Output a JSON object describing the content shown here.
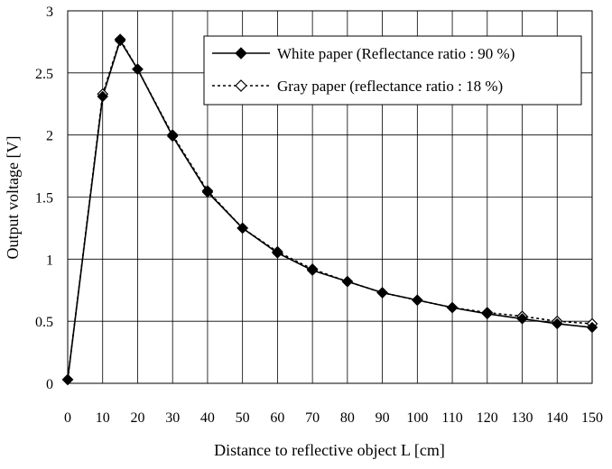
{
  "chart_data": {
    "type": "line",
    "title": "",
    "xlabel": "Distance to reflective object L [cm]",
    "ylabel": "Output voltage [V]",
    "xlim": [
      0,
      150
    ],
    "ylim": [
      0,
      3
    ],
    "xticks": [
      0,
      10,
      20,
      30,
      40,
      50,
      60,
      70,
      80,
      90,
      100,
      110,
      120,
      130,
      140,
      150
    ],
    "yticks": [
      0,
      0.5,
      1,
      1.5,
      2,
      2.5,
      3
    ],
    "xtick_labels": [
      "0",
      "10",
      "20",
      "30",
      "40",
      "50",
      "60",
      "70",
      "80",
      "90",
      "100",
      "110",
      "120",
      "130",
      "140",
      "150"
    ],
    "ytick_labels": [
      "0",
      "0.5",
      "1",
      "1.5",
      "2",
      "2.5",
      "3"
    ],
    "grid": true,
    "legend_position": "top-right",
    "series": [
      {
        "name": "White paper (Reflectance ratio : 90 %)",
        "style": "solid",
        "marker": "filled-diamond",
        "x": [
          0,
          10,
          15,
          20,
          30,
          40,
          50,
          60,
          70,
          80,
          90,
          100,
          110,
          120,
          130,
          140,
          150
        ],
        "y": [
          0.03,
          2.31,
          2.76,
          2.53,
          1.99,
          1.54,
          1.25,
          1.05,
          0.91,
          0.82,
          0.73,
          0.67,
          0.61,
          0.56,
          0.52,
          0.48,
          0.45
        ]
      },
      {
        "name": "Gray paper (reflectance ratio : 18 %)",
        "style": "dotted",
        "marker": "hollow-diamond",
        "x": [
          0,
          10,
          15,
          20,
          30,
          40,
          50,
          60,
          70,
          80,
          90,
          100,
          110,
          120,
          130,
          140,
          150
        ],
        "y": [
          0.03,
          2.33,
          2.77,
          2.53,
          2.0,
          1.55,
          1.25,
          1.06,
          0.92,
          0.82,
          0.73,
          0.67,
          0.61,
          0.57,
          0.54,
          0.5,
          0.48
        ]
      }
    ]
  }
}
